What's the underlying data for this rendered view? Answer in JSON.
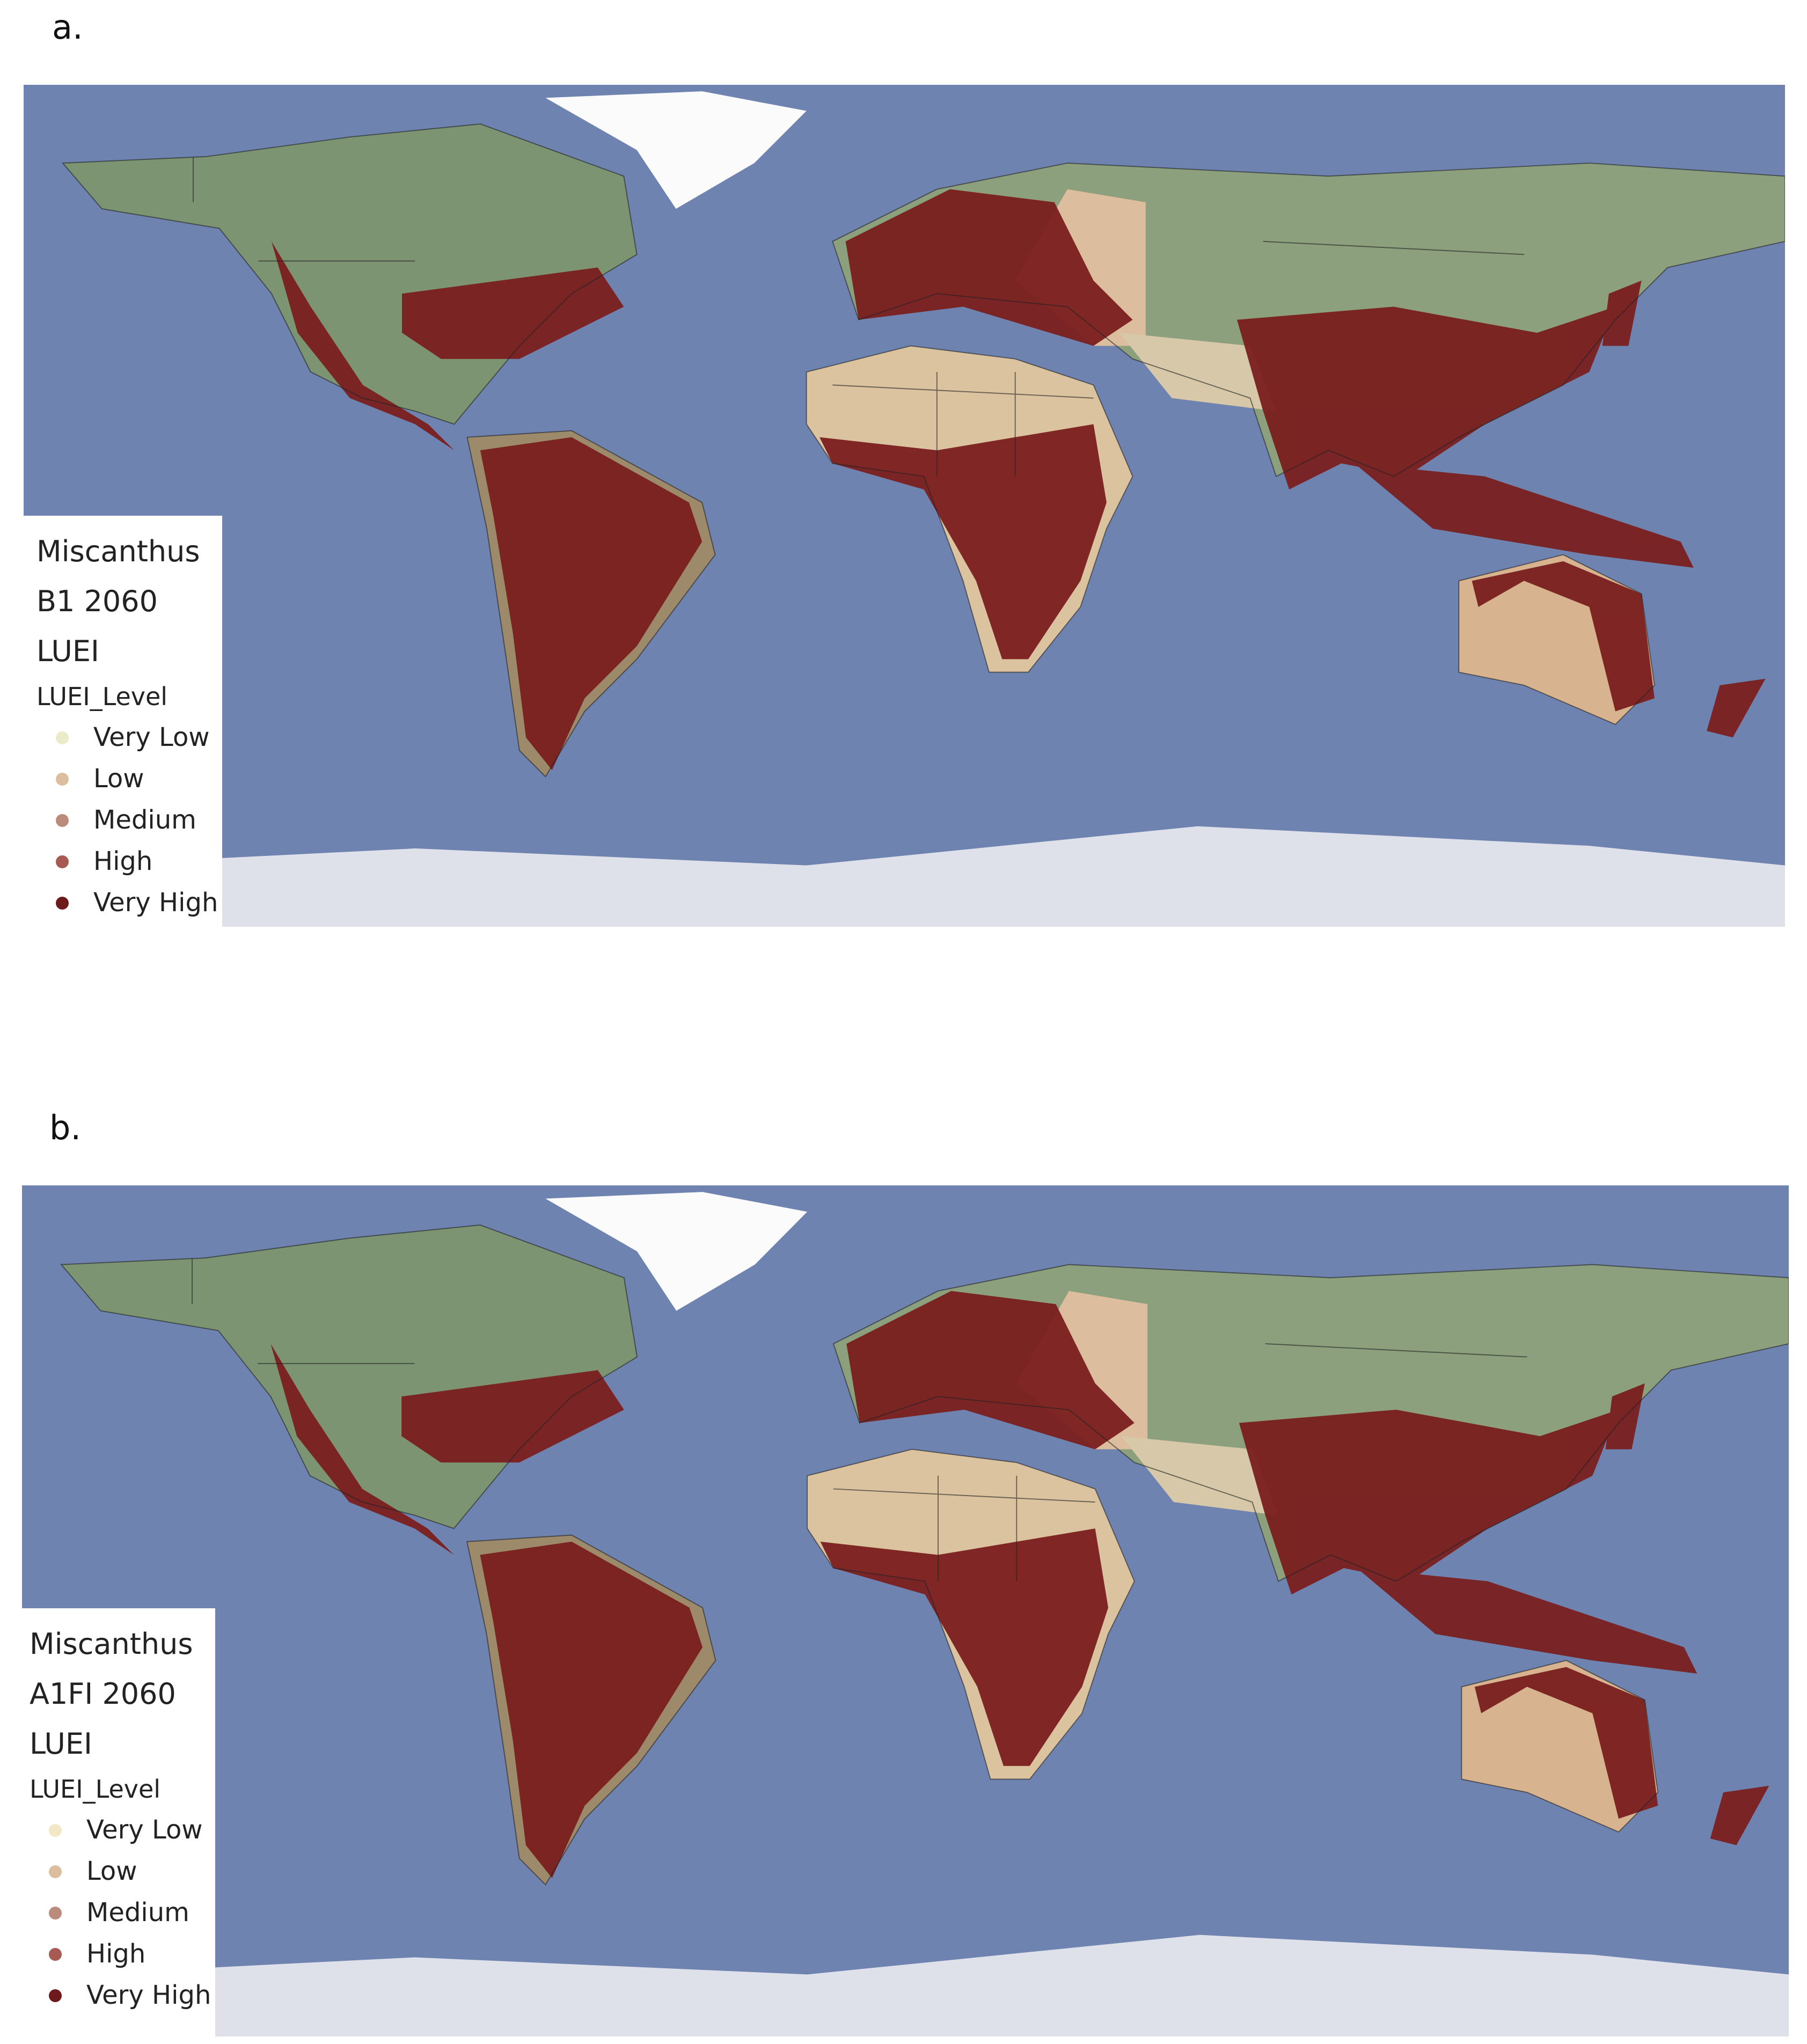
{
  "panels": [
    {
      "label": "a.",
      "legend": {
        "title_lines": [
          "Miscanthus",
          "B1 2060",
          "LUEI"
        ],
        "heading": "LUEI_Level",
        "levels": [
          {
            "name": "Very Low",
            "color": "#ecebc9"
          },
          {
            "name": "Low",
            "color": "#dcbd9e"
          },
          {
            "name": "Medium",
            "color": "#bb8c7c"
          },
          {
            "name": "High",
            "color": "#a75a52"
          },
          {
            "name": "Very High",
            "color": "#6e1a1c"
          }
        ]
      }
    },
    {
      "label": "b.",
      "legend": {
        "title_lines": [
          "Miscanthus",
          "A1FI 2060",
          "LUEI"
        ],
        "heading": "LUEI_Level",
        "levels": [
          {
            "name": "Very Low",
            "color": "#f2e7c6"
          },
          {
            "name": "Low",
            "color": "#dcbd9e"
          },
          {
            "name": "Medium",
            "color": "#bb8c7c"
          },
          {
            "name": "High",
            "color": "#a75a52"
          },
          {
            "name": "Very High",
            "color": "#6e1a1c"
          }
        ]
      }
    }
  ]
}
